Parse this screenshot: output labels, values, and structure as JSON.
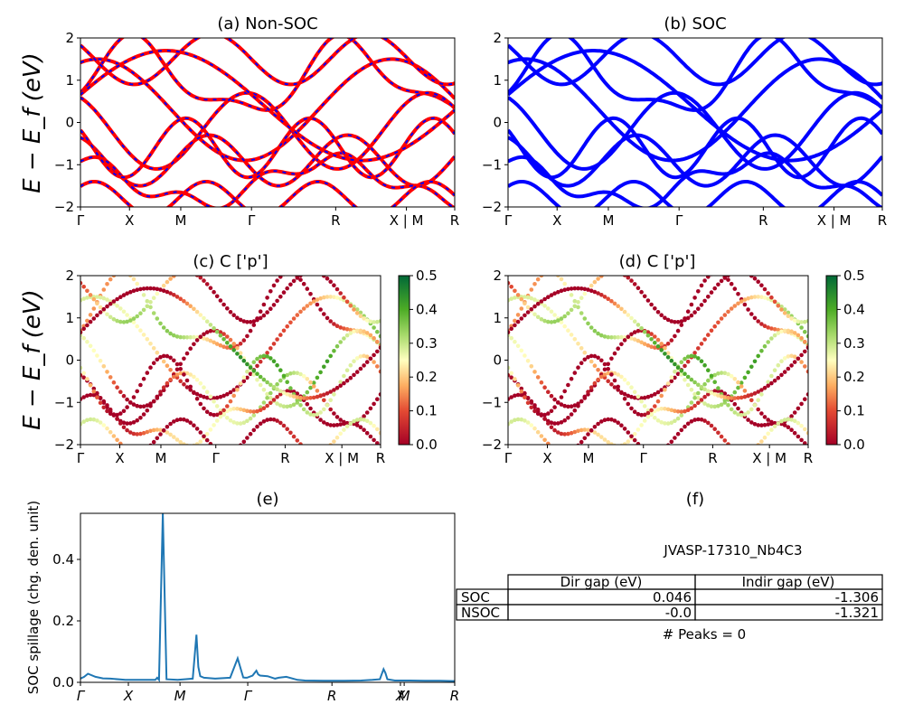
{
  "chart_data": [
    {
      "id": "a",
      "type": "line",
      "title": "(a) Non-SOC",
      "ylabel": "E − E_f (eV)",
      "ylim": [
        -2,
        2
      ],
      "yticks": [
        "2",
        "1",
        "0",
        "−1",
        "−2"
      ],
      "kpath_labels": [
        "Γ",
        "X",
        "M",
        "Γ",
        "R",
        "X | M",
        "R"
      ],
      "series": [
        {
          "color": "#ff0000",
          "dash_color": "#0000ff"
        }
      ]
    },
    {
      "id": "b",
      "type": "line",
      "title": "(b) SOC",
      "ylim": [
        -2,
        2
      ],
      "yticks": [
        "2",
        "1",
        "0",
        "−1",
        "−2"
      ],
      "kpath_labels": [
        "Γ",
        "X",
        "M",
        "Γ",
        "R",
        "X | M",
        "R"
      ],
      "series": [
        {
          "color": "#0000ff"
        }
      ]
    },
    {
      "id": "c",
      "type": "scatter",
      "title": "(c)  C ['p']",
      "ylabel": "E − E_f (eV)",
      "ylim": [
        -2,
        2
      ],
      "yticks": [
        "2",
        "1",
        "0",
        "−1",
        "−2"
      ],
      "kpath_labels": [
        "Γ",
        "X",
        "M",
        "Γ",
        "R",
        "X | M",
        "R"
      ],
      "colorbar": {
        "range": [
          0.0,
          0.5
        ],
        "ticks": [
          "0.5",
          "0.4",
          "0.3",
          "0.2",
          "0.1",
          "0.0"
        ],
        "colormap": "RdYlGn"
      }
    },
    {
      "id": "d",
      "type": "scatter",
      "title": "(d) C ['p']",
      "ylim": [
        -2,
        2
      ],
      "yticks": [
        "2",
        "1",
        "0",
        "−1",
        "−2"
      ],
      "kpath_labels": [
        "Γ",
        "X",
        "M",
        "Γ",
        "R",
        "X | M",
        "R"
      ],
      "colorbar": {
        "range": [
          0.0,
          0.5
        ],
        "ticks": [
          "0.5",
          "0.4",
          "0.3",
          "0.2",
          "0.1",
          "0.0"
        ],
        "colormap": "RdYlGn"
      }
    },
    {
      "id": "e",
      "type": "line",
      "title": "(e)",
      "ylabel": "SOC spillage (chg. den. unit)",
      "ylim": [
        0,
        0.55
      ],
      "yticks": [
        "0.4",
        "0.2",
        "0.0"
      ],
      "kpath_labels": [
        "Γ",
        "X",
        "M",
        "Γ",
        "R",
        "X",
        "M",
        "R"
      ],
      "series": [
        {
          "color": "#1f77b4",
          "x": [
            0,
            0.01,
            0.02,
            0.04,
            0.06,
            0.08,
            0.12,
            0.16,
            0.2,
            0.205,
            0.21,
            0.22,
            0.23,
            0.26,
            0.3,
            0.31,
            0.315,
            0.32,
            0.33,
            0.36,
            0.4,
            0.42,
            0.435,
            0.44,
            0.445,
            0.46,
            0.47,
            0.475,
            0.48,
            0.5,
            0.52,
            0.53,
            0.55,
            0.58,
            0.6,
            0.65,
            0.7,
            0.75,
            0.78,
            0.8,
            0.81,
            0.815,
            0.82,
            0.84,
            0.88,
            0.92,
            0.96,
            1.0
          ],
          "y": [
            0.012,
            0.018,
            0.028,
            0.018,
            0.013,
            0.012,
            0.008,
            0.008,
            0.008,
            0.015,
            0.008,
            0.55,
            0.01,
            0.008,
            0.012,
            0.155,
            0.05,
            0.02,
            0.015,
            0.012,
            0.015,
            0.078,
            0.016,
            0.015,
            0.015,
            0.022,
            0.038,
            0.026,
            0.022,
            0.02,
            0.012,
            0.015,
            0.018,
            0.008,
            0.006,
            0.005,
            0.005,
            0.006,
            0.008,
            0.01,
            0.043,
            0.03,
            0.01,
            0.006,
            0.006,
            0.005,
            0.005,
            0.004
          ]
        }
      ]
    }
  ],
  "panel_f": {
    "title": "(f)",
    "material": "JVASP-17310_Nb4C3",
    "table": {
      "headers": [
        "",
        "Dir gap (eV)",
        "Indir gap (eV)"
      ],
      "rows": [
        {
          "label": "SOC",
          "dir": "0.046",
          "indir": "-1.306"
        },
        {
          "label": "NSOC",
          "dir": "-0.0",
          "indir": "-1.321"
        }
      ]
    },
    "peaks": "# Peaks = 0"
  }
}
